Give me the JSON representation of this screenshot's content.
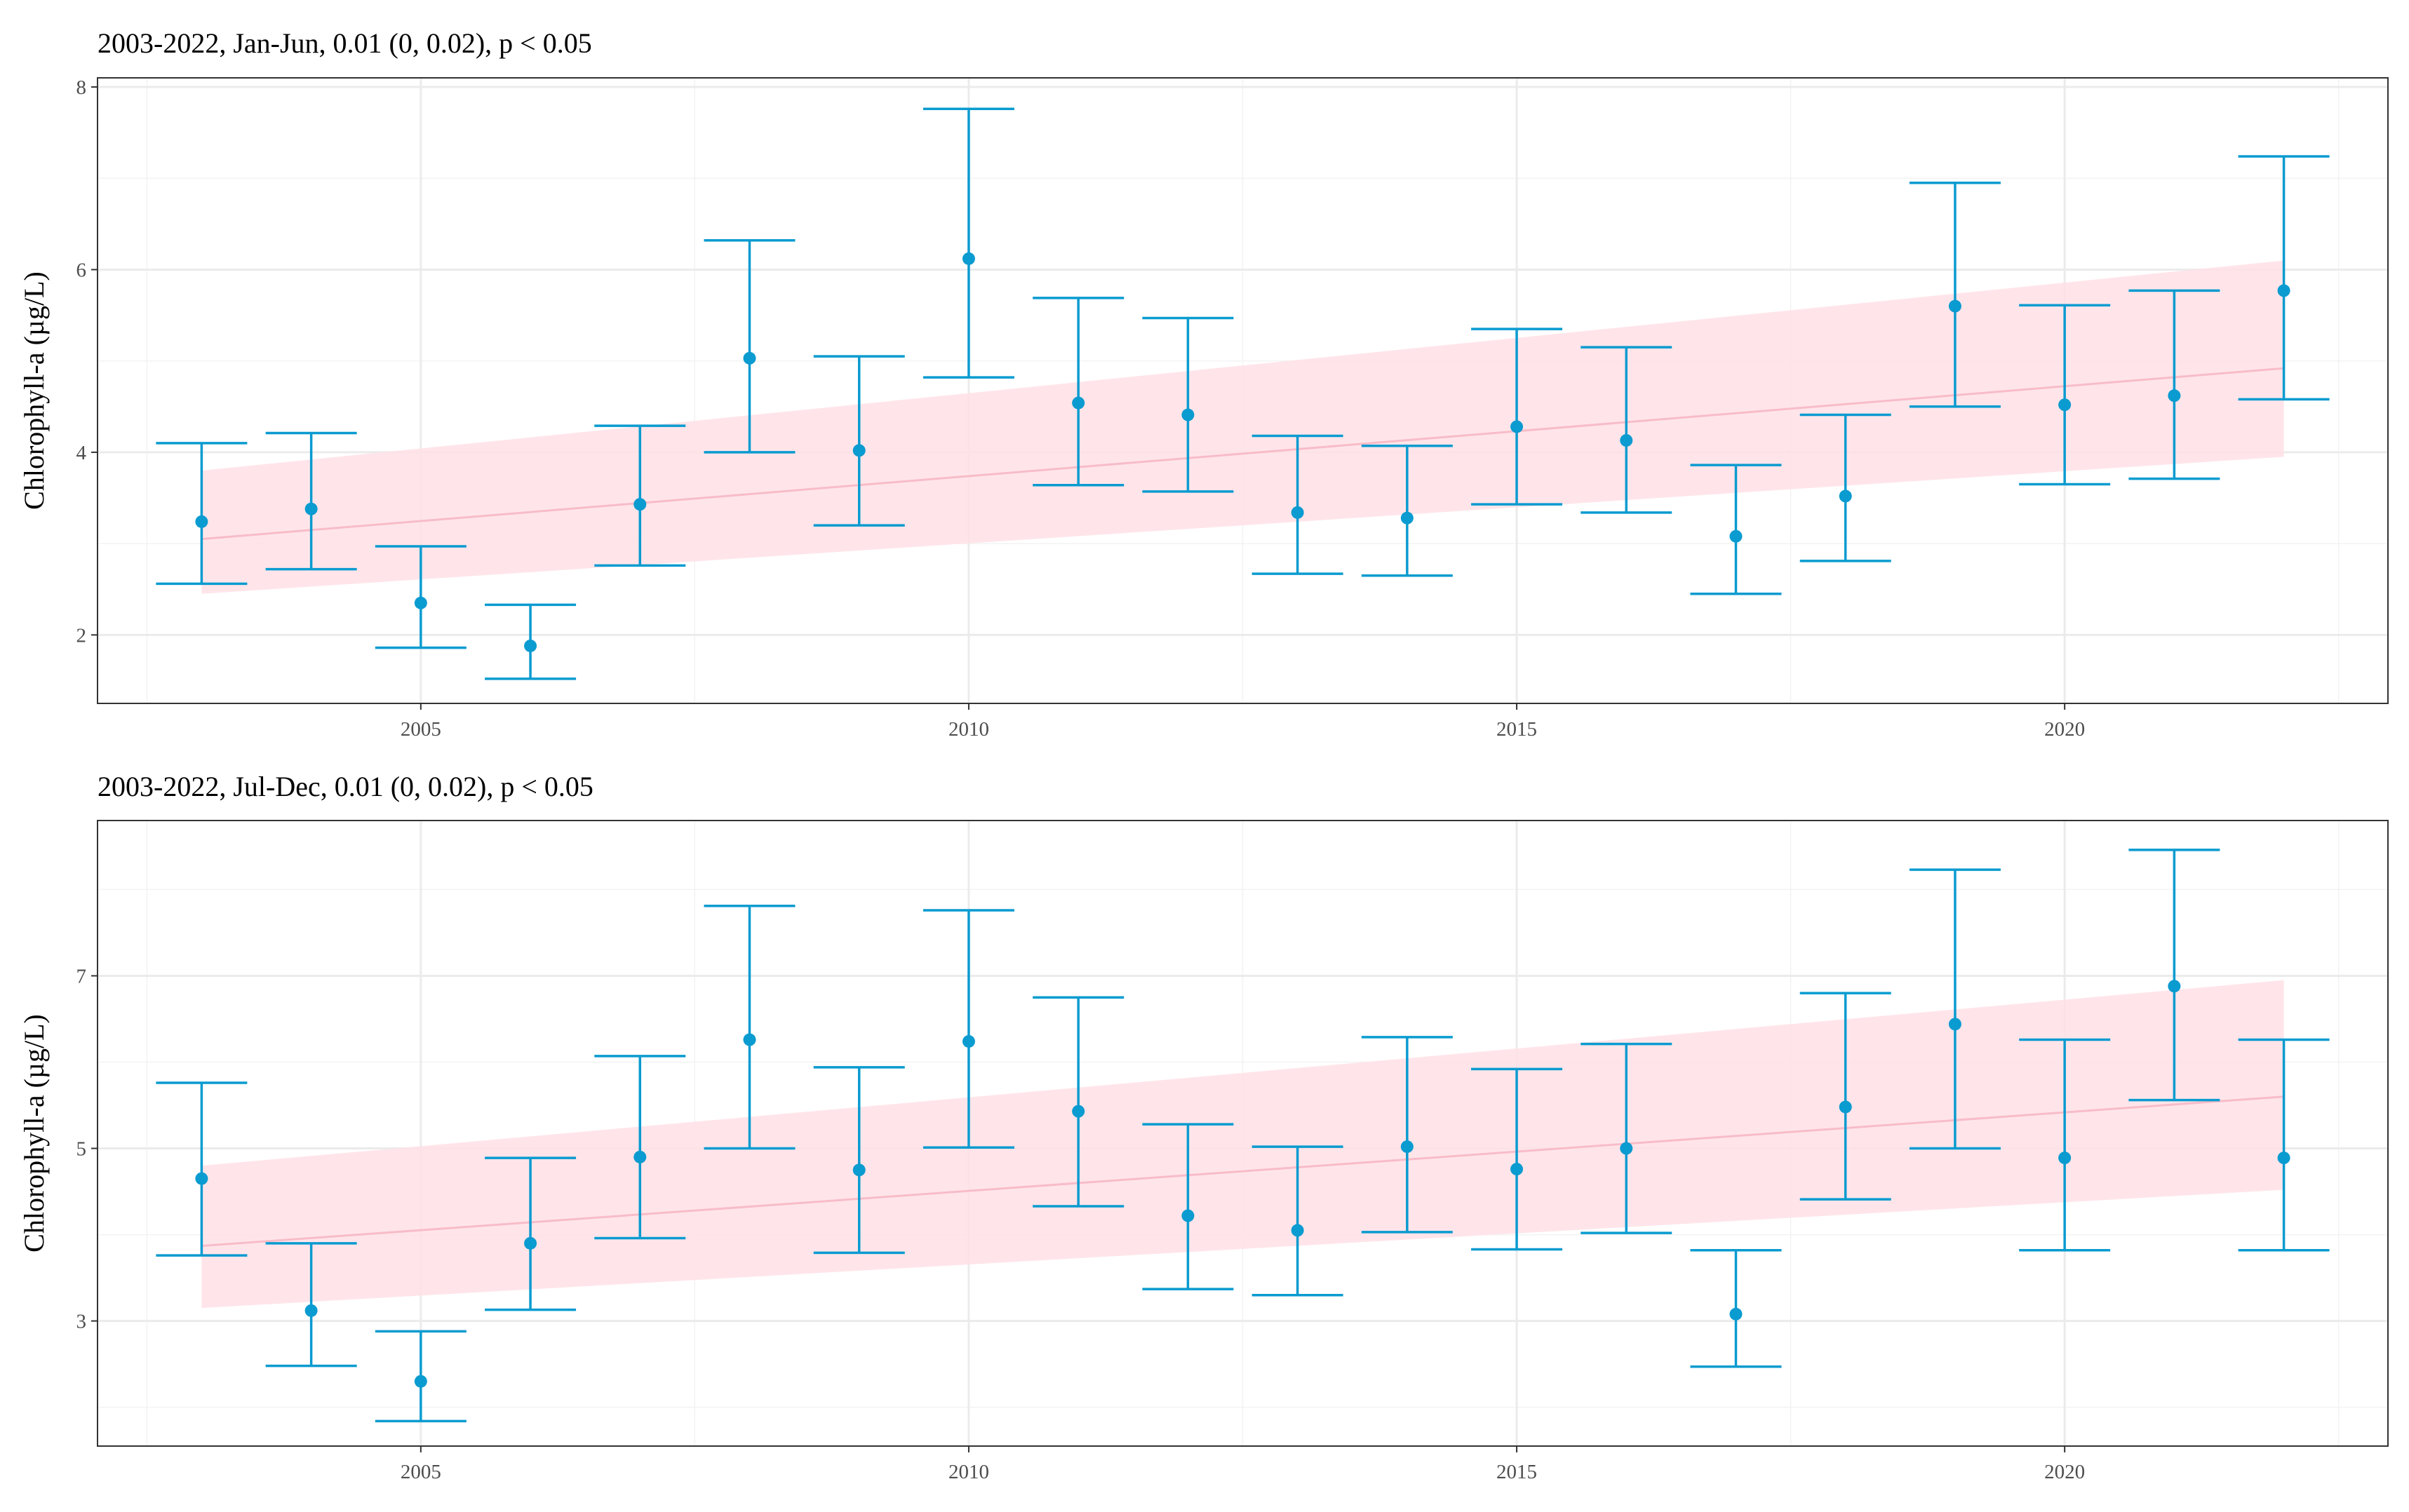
{
  "chart_data": [
    {
      "type": "scatter",
      "title": "2003-2022, Jan-Jun, 0.01 (0, 0.02), p < 0.05",
      "xlabel": "",
      "ylabel": "Chlorophyll-a (µg/L)",
      "xlim": [
        2002.05,
        2022.95
      ],
      "ylim": [
        1.25,
        8.1
      ],
      "x_ticks": [
        2005,
        2010,
        2015,
        2020
      ],
      "x_tick_labels": [
        "2005",
        "2010",
        "2015",
        "2020"
      ],
      "y_ticks": [
        2,
        4,
        6,
        8
      ],
      "y_tick_labels": [
        "2",
        "4",
        "6",
        "8"
      ],
      "grid": true,
      "legend": "none",
      "colors": {
        "points": "#0a9bd0",
        "errorbars": "#0a9bd0",
        "trend_band": "#ffe0e6",
        "trend_line": "#f8bcc8"
      },
      "series": [
        {
          "x": [
            2003,
            2004,
            2005,
            2006,
            2007,
            2008,
            2009,
            2010,
            2011,
            2012,
            2013,
            2014,
            2015,
            2016,
            2017,
            2018,
            2019,
            2020,
            2021,
            2022
          ],
          "values": [
            3.24,
            3.38,
            2.35,
            1.88,
            3.43,
            5.03,
            4.02,
            6.12,
            4.54,
            4.41,
            3.34,
            3.28,
            4.28,
            4.13,
            3.08,
            3.52,
            5.6,
            4.52,
            4.62,
            5.77
          ],
          "lower": [
            2.56,
            2.72,
            1.86,
            1.52,
            2.76,
            4.0,
            3.2,
            4.82,
            3.64,
            3.57,
            2.67,
            2.65,
            3.43,
            3.34,
            2.45,
            2.81,
            4.5,
            3.65,
            3.71,
            4.58
          ],
          "upper": [
            4.1,
            4.21,
            2.97,
            2.33,
            4.29,
            6.32,
            5.05,
            7.76,
            5.69,
            5.47,
            4.18,
            4.07,
            5.35,
            5.15,
            3.86,
            4.41,
            6.95,
            5.61,
            5.77,
            7.24
          ]
        }
      ],
      "trend": {
        "x": [
          2003,
          2022
        ],
        "fit": [
          3.05,
          4.92
        ],
        "lower": [
          2.45,
          3.95
        ],
        "upper": [
          3.8,
          6.1
        ]
      }
    },
    {
      "type": "scatter",
      "title": "2003-2022, Jul-Dec, 0.01 (0, 0.02), p < 0.05",
      "xlabel": "",
      "ylabel": "Chlorophyll-a (µg/L)",
      "xlim": [
        2002.05,
        2022.95
      ],
      "ylim": [
        1.55,
        8.8
      ],
      "x_ticks": [
        2005,
        2010,
        2015,
        2020
      ],
      "x_tick_labels": [
        "2005",
        "2010",
        "2015",
        "2020"
      ],
      "y_ticks": [
        3,
        5,
        7
      ],
      "y_tick_labels": [
        "3",
        "5",
        "7"
      ],
      "grid": true,
      "legend": "none",
      "colors": {
        "points": "#0a9bd0",
        "errorbars": "#0a9bd0",
        "trend_band": "#ffe0e6",
        "trend_line": "#f8bcc8"
      },
      "series": [
        {
          "x": [
            2003,
            2004,
            2005,
            2006,
            2007,
            2008,
            2009,
            2010,
            2011,
            2012,
            2013,
            2014,
            2015,
            2016,
            2017,
            2018,
            2019,
            2020,
            2021,
            2022
          ],
          "values": [
            4.65,
            3.12,
            2.3,
            3.9,
            4.9,
            6.26,
            4.75,
            6.24,
            5.43,
            4.22,
            4.05,
            5.02,
            4.76,
            5.0,
            3.08,
            5.48,
            6.44,
            4.89,
            6.88,
            4.89
          ],
          "lower": [
            3.76,
            2.48,
            1.84,
            3.13,
            3.96,
            5.0,
            3.79,
            5.01,
            4.33,
            3.37,
            3.3,
            4.03,
            3.83,
            4.02,
            2.47,
            4.41,
            5.0,
            3.82,
            5.56,
            3.82
          ],
          "upper": [
            5.76,
            3.9,
            2.88,
            4.89,
            6.07,
            7.81,
            5.94,
            7.76,
            6.75,
            5.28,
            5.02,
            6.29,
            5.92,
            6.21,
            3.82,
            6.8,
            8.23,
            6.26,
            8.46,
            6.26
          ]
        }
      ],
      "trend": {
        "x": [
          2003,
          2022
        ],
        "fit": [
          3.87,
          5.6
        ],
        "lower": [
          3.15,
          4.52
        ],
        "upper": [
          4.8,
          6.95
        ]
      }
    }
  ]
}
